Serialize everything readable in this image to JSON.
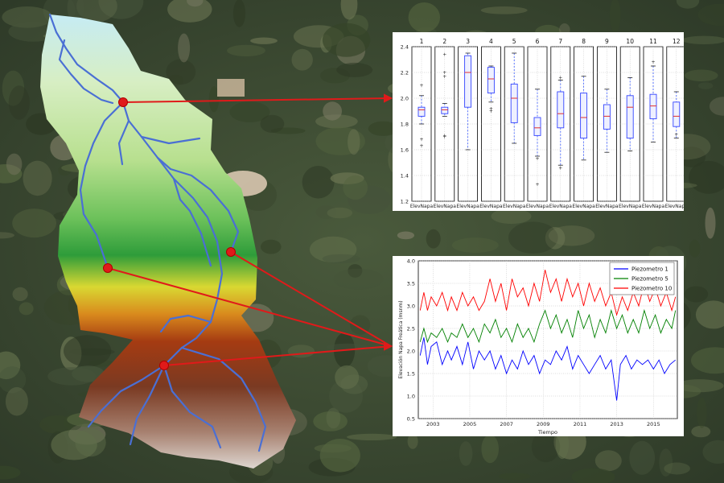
{
  "chart_data": [
    {
      "type": "box",
      "panel_labels": [
        "1",
        "2",
        "3",
        "4",
        "5",
        "6",
        "7",
        "8",
        "9",
        "10",
        "11",
        "12"
      ],
      "tick_label": "ElevNapa",
      "ylim": [
        1.2,
        2.4
      ],
      "yticks": [
        "1.2",
        "1.4",
        "1.6",
        "1.8",
        "2.0",
        "2.2",
        "2.4"
      ],
      "grid": true,
      "boxes": [
        {
          "wl": 1.8,
          "q1": 1.86,
          "med": 1.91,
          "q3": 1.93,
          "wh": 2.02,
          "fliers": [
            1.63,
            1.68,
            2.1
          ]
        },
        {
          "wl": 1.86,
          "q1": 1.88,
          "med": 1.91,
          "q3": 1.93,
          "wh": 1.96,
          "fliers": [
            1.7,
            1.71,
            2.17,
            2.2,
            2.34
          ]
        },
        {
          "wl": 1.6,
          "q1": 1.93,
          "med": 2.2,
          "q3": 2.33,
          "wh": 2.35,
          "fliers": []
        },
        {
          "wl": 1.97,
          "q1": 2.04,
          "med": 2.15,
          "q3": 2.24,
          "wh": 2.25,
          "fliers": [
            1.9,
            1.92
          ]
        },
        {
          "wl": 1.65,
          "q1": 1.81,
          "med": 2.0,
          "q3": 2.11,
          "wh": 2.35,
          "fliers": []
        },
        {
          "wl": 1.55,
          "q1": 1.71,
          "med": 1.77,
          "q3": 1.85,
          "wh": 2.07,
          "fliers": [
            1.33,
            1.53
          ]
        },
        {
          "wl": 1.48,
          "q1": 1.77,
          "med": 1.88,
          "q3": 2.05,
          "wh": 2.14,
          "fliers": [
            1.46,
            2.16
          ]
        },
        {
          "wl": 1.52,
          "q1": 1.69,
          "med": 1.85,
          "q3": 2.04,
          "wh": 2.17,
          "fliers": []
        },
        {
          "wl": 1.58,
          "q1": 1.76,
          "med": 1.86,
          "q3": 1.95,
          "wh": 2.07,
          "fliers": []
        },
        {
          "wl": 1.59,
          "q1": 1.69,
          "med": 1.93,
          "q3": 2.02,
          "wh": 2.16,
          "fliers": []
        },
        {
          "wl": 1.66,
          "q1": 1.84,
          "med": 1.94,
          "q3": 2.03,
          "wh": 2.25,
          "fliers": [
            2.28
          ]
        },
        {
          "wl": 1.69,
          "q1": 1.78,
          "med": 1.86,
          "q3": 1.97,
          "wh": 2.05,
          "fliers": [
            1.72
          ]
        }
      ]
    },
    {
      "type": "line",
      "xlabel": "Tiempo",
      "ylabel": "Elevación Napa Freática (msnm)",
      "xlim": [
        2002.2,
        2016.3
      ],
      "ylim": [
        0.5,
        4.0
      ],
      "xticks": [
        "2003",
        "2005",
        "2007",
        "2009",
        "2011",
        "2013",
        "2015"
      ],
      "yticks": [
        "0.5",
        "1.0",
        "1.5",
        "2.0",
        "2.5",
        "3.0",
        "3.5",
        "4.0"
      ],
      "legend_position": "top-right",
      "series": [
        {
          "name": "Piezometro 1",
          "color": "#0000ff",
          "points": [
            [
              2002.3,
              1.9
            ],
            [
              2002.5,
              2.3
            ],
            [
              2002.7,
              1.7
            ],
            [
              2002.9,
              2.1
            ],
            [
              2003.2,
              2.2
            ],
            [
              2003.5,
              1.7
            ],
            [
              2003.8,
              2.0
            ],
            [
              2004.0,
              1.8
            ],
            [
              2004.3,
              2.1
            ],
            [
              2004.6,
              1.7
            ],
            [
              2004.9,
              2.2
            ],
            [
              2005.2,
              1.6
            ],
            [
              2005.5,
              2.0
            ],
            [
              2005.8,
              1.8
            ],
            [
              2006.1,
              2.0
            ],
            [
              2006.4,
              1.6
            ],
            [
              2006.7,
              1.9
            ],
            [
              2007.0,
              1.5
            ],
            [
              2007.3,
              1.8
            ],
            [
              2007.6,
              1.6
            ],
            [
              2007.9,
              2.0
            ],
            [
              2008.2,
              1.7
            ],
            [
              2008.5,
              1.9
            ],
            [
              2008.8,
              1.5
            ],
            [
              2009.1,
              1.8
            ],
            [
              2009.4,
              1.7
            ],
            [
              2009.7,
              2.0
            ],
            [
              2010.0,
              1.8
            ],
            [
              2010.3,
              2.1
            ],
            [
              2010.6,
              1.6
            ],
            [
              2010.9,
              1.9
            ],
            [
              2011.2,
              1.7
            ],
            [
              2011.5,
              1.5
            ],
            [
              2011.8,
              1.7
            ],
            [
              2012.1,
              1.9
            ],
            [
              2012.4,
              1.6
            ],
            [
              2012.7,
              1.8
            ],
            [
              2013.0,
              0.9
            ],
            [
              2013.2,
              1.7
            ],
            [
              2013.5,
              1.9
            ],
            [
              2013.8,
              1.6
            ],
            [
              2014.1,
              1.8
            ],
            [
              2014.4,
              1.7
            ],
            [
              2014.7,
              1.8
            ],
            [
              2015.0,
              1.6
            ],
            [
              2015.3,
              1.8
            ],
            [
              2015.6,
              1.5
            ],
            [
              2015.9,
              1.7
            ],
            [
              2016.2,
              1.8
            ]
          ]
        },
        {
          "name": "Piezometro 5",
          "color": "#008000",
          "points": [
            [
              2002.3,
              2.2
            ],
            [
              2002.5,
              2.5
            ],
            [
              2002.7,
              2.2
            ],
            [
              2002.9,
              2.4
            ],
            [
              2003.2,
              2.3
            ],
            [
              2003.5,
              2.5
            ],
            [
              2003.8,
              2.2
            ],
            [
              2004.0,
              2.4
            ],
            [
              2004.3,
              2.3
            ],
            [
              2004.6,
              2.6
            ],
            [
              2004.9,
              2.3
            ],
            [
              2005.2,
              2.5
            ],
            [
              2005.5,
              2.2
            ],
            [
              2005.8,
              2.6
            ],
            [
              2006.1,
              2.4
            ],
            [
              2006.4,
              2.7
            ],
            [
              2006.7,
              2.3
            ],
            [
              2007.0,
              2.5
            ],
            [
              2007.3,
              2.2
            ],
            [
              2007.6,
              2.6
            ],
            [
              2007.9,
              2.3
            ],
            [
              2008.2,
              2.5
            ],
            [
              2008.5,
              2.2
            ],
            [
              2008.8,
              2.6
            ],
            [
              2009.1,
              2.9
            ],
            [
              2009.4,
              2.5
            ],
            [
              2009.7,
              2.8
            ],
            [
              2010.0,
              2.4
            ],
            [
              2010.3,
              2.7
            ],
            [
              2010.6,
              2.3
            ],
            [
              2010.9,
              2.9
            ],
            [
              2011.2,
              2.5
            ],
            [
              2011.5,
              2.8
            ],
            [
              2011.8,
              2.3
            ],
            [
              2012.1,
              2.7
            ],
            [
              2012.4,
              2.4
            ],
            [
              2012.7,
              2.9
            ],
            [
              2013.0,
              2.5
            ],
            [
              2013.3,
              2.8
            ],
            [
              2013.6,
              2.4
            ],
            [
              2013.9,
              2.7
            ],
            [
              2014.2,
              2.4
            ],
            [
              2014.5,
              2.9
            ],
            [
              2014.8,
              2.5
            ],
            [
              2015.1,
              2.8
            ],
            [
              2015.4,
              2.4
            ],
            [
              2015.7,
              2.7
            ],
            [
              2016.0,
              2.5
            ],
            [
              2016.2,
              2.9
            ]
          ]
        },
        {
          "name": "Piezometro 10",
          "color": "#ff0000",
          "points": [
            [
              2002.3,
              2.9
            ],
            [
              2002.5,
              3.3
            ],
            [
              2002.7,
              2.9
            ],
            [
              2002.9,
              3.2
            ],
            [
              2003.2,
              3.0
            ],
            [
              2003.5,
              3.3
            ],
            [
              2003.8,
              2.9
            ],
            [
              2004.0,
              3.2
            ],
            [
              2004.3,
              2.9
            ],
            [
              2004.6,
              3.3
            ],
            [
              2004.9,
              3.0
            ],
            [
              2005.2,
              3.2
            ],
            [
              2005.5,
              2.9
            ],
            [
              2005.8,
              3.1
            ],
            [
              2006.1,
              3.6
            ],
            [
              2006.4,
              3.1
            ],
            [
              2006.7,
              3.5
            ],
            [
              2007.0,
              2.9
            ],
            [
              2007.3,
              3.6
            ],
            [
              2007.6,
              3.2
            ],
            [
              2007.9,
              3.4
            ],
            [
              2008.2,
              3.0
            ],
            [
              2008.5,
              3.5
            ],
            [
              2008.8,
              3.1
            ],
            [
              2009.1,
              3.8
            ],
            [
              2009.4,
              3.3
            ],
            [
              2009.7,
              3.6
            ],
            [
              2010.0,
              3.1
            ],
            [
              2010.3,
              3.6
            ],
            [
              2010.6,
              3.2
            ],
            [
              2010.9,
              3.5
            ],
            [
              2011.2,
              3.0
            ],
            [
              2011.5,
              3.5
            ],
            [
              2011.8,
              3.1
            ],
            [
              2012.1,
              3.4
            ],
            [
              2012.4,
              3.0
            ],
            [
              2012.7,
              3.3
            ],
            [
              2013.0,
              2.8
            ],
            [
              2013.3,
              3.2
            ],
            [
              2013.6,
              2.9
            ],
            [
              2013.9,
              3.3
            ],
            [
              2014.2,
              3.0
            ],
            [
              2014.5,
              3.5
            ],
            [
              2014.8,
              3.1
            ],
            [
              2015.1,
              3.4
            ],
            [
              2015.4,
              3.0
            ],
            [
              2015.7,
              3.3
            ],
            [
              2016.0,
              2.9
            ],
            [
              2016.2,
              3.2
            ]
          ]
        }
      ]
    }
  ],
  "map": {
    "basemap_color": "#3f4a34",
    "markers": [
      {
        "x": 153,
        "y": 127,
        "target": "boxplot"
      },
      {
        "x": 287,
        "y": 313,
        "target": "lineplot"
      },
      {
        "x": 134,
        "y": 333,
        "target": "lineplot"
      },
      {
        "x": 204,
        "y": 454,
        "target": "lineplot"
      }
    ]
  }
}
